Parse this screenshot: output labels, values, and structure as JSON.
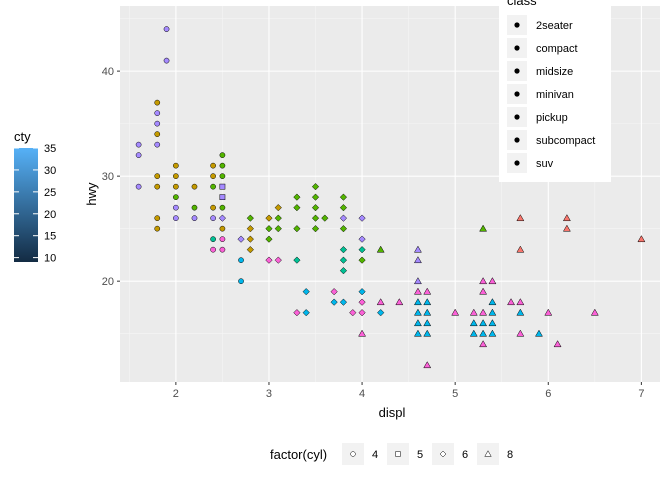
{
  "chart_data": {
    "type": "scatter",
    "xlabel": "displ",
    "ylabel": "hwy",
    "xlim": [
      1.4,
      7.2
    ],
    "ylim": [
      10.4,
      46.2
    ],
    "x_ticks": [
      2,
      3,
      4,
      5,
      6,
      7
    ],
    "y_ticks": [
      20,
      30,
      40
    ],
    "grid": true,
    "color_legend": {
      "title": "cty",
      "variable": "cty",
      "range": [
        9,
        35
      ],
      "breaks": [
        10,
        15,
        20,
        25,
        30,
        35
      ],
      "low_color": "#132B43",
      "high_color": "#56B1F7",
      "placement": "left"
    },
    "shape_legend": {
      "title": "factor(cyl)",
      "placement": "bottom",
      "entries": [
        {
          "label": "4",
          "shape": "circle"
        },
        {
          "label": "5",
          "shape": "square"
        },
        {
          "label": "6",
          "shape": "diamond"
        },
        {
          "label": "8",
          "shape": "triangle"
        }
      ]
    },
    "class_legend": {
      "title": "class",
      "placement": "top-right",
      "entries": [
        "2seater",
        "compact",
        "midsize",
        "minivan",
        "pickup",
        "subcompact",
        "suv"
      ],
      "class_colors": {
        "2seater": "#F8766D",
        "compact": "#C49A00",
        "midsize": "#53B400",
        "minivan": "#00C094",
        "pickup": "#00B6EB",
        "subcompact": "#A58AFF",
        "suv": "#FB61D7"
      }
    },
    "points": [
      {
        "x": 1.6,
        "y": 33,
        "cyl": "4",
        "fill": "#A58AFF",
        "cty": 28
      },
      {
        "x": 1.6,
        "y": 32,
        "cyl": "4",
        "fill": "#A58AFF",
        "cty": 26
      },
      {
        "x": 1.6,
        "y": 29,
        "cyl": "4",
        "fill": "#A58AFF",
        "cty": 24
      },
      {
        "x": 1.8,
        "y": 37,
        "cyl": "4",
        "fill": "#C49A00",
        "cty": 28
      },
      {
        "x": 1.8,
        "y": 36,
        "cyl": "4",
        "fill": "#A58AFF",
        "cty": 28
      },
      {
        "x": 1.8,
        "y": 35,
        "cyl": "4",
        "fill": "#A58AFF",
        "cty": 26
      },
      {
        "x": 1.8,
        "y": 34,
        "cyl": "4",
        "fill": "#C49A00",
        "cty": 25
      },
      {
        "x": 1.8,
        "y": 33,
        "cyl": "4",
        "fill": "#A58AFF",
        "cty": 24
      },
      {
        "x": 1.8,
        "y": 30,
        "cyl": "4",
        "fill": "#C49A00",
        "cty": 22
      },
      {
        "x": 1.8,
        "y": 29,
        "cyl": "4",
        "fill": "#C49A00",
        "cty": 21
      },
      {
        "x": 1.8,
        "y": 26,
        "cyl": "4",
        "fill": "#C49A00",
        "cty": 19
      },
      {
        "x": 1.8,
        "y": 25,
        "cyl": "4",
        "fill": "#C49A00",
        "cty": 18
      },
      {
        "x": 1.9,
        "y": 44,
        "cyl": "4",
        "fill": "#A58AFF",
        "cty": 35
      },
      {
        "x": 1.9,
        "y": 41,
        "cyl": "4",
        "fill": "#A58AFF",
        "cty": 33
      },
      {
        "x": 2.0,
        "y": 31,
        "cyl": "4",
        "fill": "#C49A00",
        "cty": 22
      },
      {
        "x": 2.0,
        "y": 30,
        "cyl": "4",
        "fill": "#C49A00",
        "cty": 21
      },
      {
        "x": 2.0,
        "y": 29,
        "cyl": "4",
        "fill": "#C49A00",
        "cty": 21
      },
      {
        "x": 2.0,
        "y": 28,
        "cyl": "4",
        "fill": "#53B400",
        "cty": 20
      },
      {
        "x": 2.0,
        "y": 27,
        "cyl": "4",
        "fill": "#A58AFF",
        "cty": 21
      },
      {
        "x": 2.0,
        "y": 26,
        "cyl": "4",
        "fill": "#A58AFF",
        "cty": 20
      },
      {
        "x": 2.2,
        "y": 29,
        "cyl": "4",
        "fill": "#C49A00",
        "cty": 21
      },
      {
        "x": 2.2,
        "y": 27,
        "cyl": "4",
        "fill": "#53B400",
        "cty": 21
      },
      {
        "x": 2.2,
        "y": 26,
        "cyl": "4",
        "fill": "#A58AFF",
        "cty": 21
      },
      {
        "x": 2.4,
        "y": 31,
        "cyl": "4",
        "fill": "#C49A00",
        "cty": 22
      },
      {
        "x": 2.4,
        "y": 30,
        "cyl": "4",
        "fill": "#C49A00",
        "cty": 22
      },
      {
        "x": 2.4,
        "y": 29,
        "cyl": "4",
        "fill": "#53B400",
        "cty": 21
      },
      {
        "x": 2.4,
        "y": 27,
        "cyl": "4",
        "fill": "#C49A00",
        "cty": 21
      },
      {
        "x": 2.4,
        "y": 26,
        "cyl": "4",
        "fill": "#A58AFF",
        "cty": 20
      },
      {
        "x": 2.4,
        "y": 24,
        "cyl": "4",
        "fill": "#00C094",
        "cty": 18
      },
      {
        "x": 2.4,
        "y": 23,
        "cyl": "4",
        "fill": "#FB61D7",
        "cty": 18
      },
      {
        "x": 2.5,
        "y": 32,
        "cyl": "4",
        "fill": "#53B400",
        "cty": 23
      },
      {
        "x": 2.5,
        "y": 31,
        "cyl": "4",
        "fill": "#53B400",
        "cty": 22
      },
      {
        "x": 2.5,
        "y": 30,
        "cyl": "4",
        "fill": "#53B400",
        "cty": 22
      },
      {
        "x": 2.5,
        "y": 29,
        "cyl": "5",
        "fill": "#A58AFF",
        "cty": 21
      },
      {
        "x": 2.5,
        "y": 28,
        "cyl": "5",
        "fill": "#A58AFF",
        "cty": 21
      },
      {
        "x": 2.5,
        "y": 27,
        "cyl": "4",
        "fill": "#53B400",
        "cty": 20
      },
      {
        "x": 2.5,
        "y": 26,
        "cyl": "6",
        "fill": "#A58AFF",
        "cty": 19
      },
      {
        "x": 2.5,
        "y": 25,
        "cyl": "4",
        "fill": "#C49A00",
        "cty": 19
      },
      {
        "x": 2.5,
        "y": 24,
        "cyl": "4",
        "fill": "#FB61D7",
        "cty": 19
      },
      {
        "x": 2.5,
        "y": 23,
        "cyl": "4",
        "fill": "#FB61D7",
        "cty": 18
      },
      {
        "x": 2.7,
        "y": 24,
        "cyl": "6",
        "fill": "#A58AFF",
        "cty": 17
      },
      {
        "x": 2.7,
        "y": 22,
        "cyl": "4",
        "fill": "#00B6EB",
        "cty": 16
      },
      {
        "x": 2.7,
        "y": 20,
        "cyl": "4",
        "fill": "#00B6EB",
        "cty": 15
      },
      {
        "x": 2.8,
        "y": 26,
        "cyl": "6",
        "fill": "#53B400",
        "cty": 18
      },
      {
        "x": 2.8,
        "y": 25,
        "cyl": "6",
        "fill": "#C49A00",
        "cty": 17
      },
      {
        "x": 2.8,
        "y": 24,
        "cyl": "6",
        "fill": "#C49A00",
        "cty": 16
      },
      {
        "x": 2.8,
        "y": 23,
        "cyl": "6",
        "fill": "#C49A00",
        "cty": 16
      },
      {
        "x": 3.0,
        "y": 26,
        "cyl": "6",
        "fill": "#C49A00",
        "cty": 18
      },
      {
        "x": 3.0,
        "y": 25,
        "cyl": "6",
        "fill": "#53B400",
        "cty": 18
      },
      {
        "x": 3.0,
        "y": 24,
        "cyl": "6",
        "fill": "#53B400",
        "cty": 17
      },
      {
        "x": 3.0,
        "y": 22,
        "cyl": "6",
        "fill": "#FB61D7",
        "cty": 16
      },
      {
        "x": 3.1,
        "y": 27,
        "cyl": "6",
        "fill": "#C49A00",
        "cty": 18
      },
      {
        "x": 3.1,
        "y": 26,
        "cyl": "6",
        "fill": "#53B400",
        "cty": 18
      },
      {
        "x": 3.1,
        "y": 25,
        "cyl": "6",
        "fill": "#53B400",
        "cty": 18
      },
      {
        "x": 3.1,
        "y": 22,
        "cyl": "6",
        "fill": "#FB61D7",
        "cty": 17
      },
      {
        "x": 3.3,
        "y": 28,
        "cyl": "6",
        "fill": "#53B400",
        "cty": 19
      },
      {
        "x": 3.3,
        "y": 27,
        "cyl": "6",
        "fill": "#53B400",
        "cty": 18
      },
      {
        "x": 3.3,
        "y": 25,
        "cyl": "6",
        "fill": "#53B400",
        "cty": 18
      },
      {
        "x": 3.3,
        "y": 22,
        "cyl": "6",
        "fill": "#00C094",
        "cty": 17
      },
      {
        "x": 3.3,
        "y": 17,
        "cyl": "6",
        "fill": "#FB61D7",
        "cty": 13
      },
      {
        "x": 3.4,
        "y": 19,
        "cyl": "6",
        "fill": "#00B6EB",
        "cty": 15
      },
      {
        "x": 3.4,
        "y": 17,
        "cyl": "6",
        "fill": "#00B6EB",
        "cty": 14
      },
      {
        "x": 3.5,
        "y": 29,
        "cyl": "6",
        "fill": "#53B400",
        "cty": 19
      },
      {
        "x": 3.5,
        "y": 28,
        "cyl": "6",
        "fill": "#53B400",
        "cty": 19
      },
      {
        "x": 3.5,
        "y": 27,
        "cyl": "6",
        "fill": "#53B400",
        "cty": 18
      },
      {
        "x": 3.5,
        "y": 26,
        "cyl": "6",
        "fill": "#53B400",
        "cty": 18
      },
      {
        "x": 3.5,
        "y": 25,
        "cyl": "6",
        "fill": "#53B400",
        "cty": 18
      },
      {
        "x": 3.6,
        "y": 26,
        "cyl": "6",
        "fill": "#53B400",
        "cty": 17
      },
      {
        "x": 3.7,
        "y": 19,
        "cyl": "6",
        "fill": "#FB61D7",
        "cty": 15
      },
      {
        "x": 3.7,
        "y": 18,
        "cyl": "6",
        "fill": "#00B6EB",
        "cty": 15
      },
      {
        "x": 3.8,
        "y": 28,
        "cyl": "6",
        "fill": "#53B400",
        "cty": 18
      },
      {
        "x": 3.8,
        "y": 27,
        "cyl": "6",
        "fill": "#53B400",
        "cty": 18
      },
      {
        "x": 3.8,
        "y": 26,
        "cyl": "6",
        "fill": "#A58AFF",
        "cty": 18
      },
      {
        "x": 3.8,
        "y": 25,
        "cyl": "6",
        "fill": "#53B400",
        "cty": 18
      },
      {
        "x": 3.8,
        "y": 23,
        "cyl": "6",
        "fill": "#00C094",
        "cty": 16
      },
      {
        "x": 3.8,
        "y": 22,
        "cyl": "6",
        "fill": "#00C094",
        "cty": 16
      },
      {
        "x": 3.8,
        "y": 21,
        "cyl": "6",
        "fill": "#00C094",
        "cty": 15
      },
      {
        "x": 3.8,
        "y": 18,
        "cyl": "6",
        "fill": "#00B6EB",
        "cty": 14
      },
      {
        "x": 3.9,
        "y": 17,
        "cyl": "6",
        "fill": "#FB61D7",
        "cty": 14
      },
      {
        "x": 4.0,
        "y": 26,
        "cyl": "6",
        "fill": "#A58AFF",
        "cty": 17
      },
      {
        "x": 4.0,
        "y": 24,
        "cyl": "6",
        "fill": "#A58AFF",
        "cty": 16
      },
      {
        "x": 4.0,
        "y": 23,
        "cyl": "6",
        "fill": "#00C094",
        "cty": 16
      },
      {
        "x": 4.0,
        "y": 22,
        "cyl": "6",
        "fill": "#53B400",
        "cty": 16
      },
      {
        "x": 4.0,
        "y": 19,
        "cyl": "6",
        "fill": "#00B6EB",
        "cty": 15
      },
      {
        "x": 4.0,
        "y": 18,
        "cyl": "6",
        "fill": "#FB61D7",
        "cty": 14
      },
      {
        "x": 4.0,
        "y": 17,
        "cyl": "6",
        "fill": "#FB61D7",
        "cty": 14
      },
      {
        "x": 4.0,
        "y": 15,
        "cyl": "8",
        "fill": "#FB61D7",
        "cty": 13
      },
      {
        "x": 4.2,
        "y": 23,
        "cyl": "8",
        "fill": "#53B400",
        "cty": 16
      },
      {
        "x": 4.2,
        "y": 18,
        "cyl": "8",
        "fill": "#FB61D7",
        "cty": 14
      },
      {
        "x": 4.2,
        "y": 17,
        "cyl": "6",
        "fill": "#00B6EB",
        "cty": 14
      },
      {
        "x": 4.4,
        "y": 18,
        "cyl": "8",
        "fill": "#FB61D7",
        "cty": 13
      },
      {
        "x": 4.6,
        "y": 23,
        "cyl": "8",
        "fill": "#A58AFF",
        "cty": 15
      },
      {
        "x": 4.6,
        "y": 22,
        "cyl": "8",
        "fill": "#A58AFF",
        "cty": 15
      },
      {
        "x": 4.6,
        "y": 20,
        "cyl": "8",
        "fill": "#A58AFF",
        "cty": 14
      },
      {
        "x": 4.6,
        "y": 19,
        "cyl": "8",
        "fill": "#FB61D7",
        "cty": 13
      },
      {
        "x": 4.6,
        "y": 18,
        "cyl": "8",
        "fill": "#00B6EB",
        "cty": 13
      },
      {
        "x": 4.6,
        "y": 17,
        "cyl": "8",
        "fill": "#00B6EB",
        "cty": 12
      },
      {
        "x": 4.6,
        "y": 16,
        "cyl": "8",
        "fill": "#00B6EB",
        "cty": 12
      },
      {
        "x": 4.6,
        "y": 15,
        "cyl": "8",
        "fill": "#00B6EB",
        "cty": 11
      },
      {
        "x": 4.7,
        "y": 19,
        "cyl": "8",
        "fill": "#FB61D7",
        "cty": 13
      },
      {
        "x": 4.7,
        "y": 18,
        "cyl": "8",
        "fill": "#00B6EB",
        "cty": 13
      },
      {
        "x": 4.7,
        "y": 17,
        "cyl": "8",
        "fill": "#00B6EB",
        "cty": 12
      },
      {
        "x": 4.7,
        "y": 16,
        "cyl": "8",
        "fill": "#00B6EB",
        "cty": 11
      },
      {
        "x": 4.7,
        "y": 15,
        "cyl": "8",
        "fill": "#00B6EB",
        "cty": 11
      },
      {
        "x": 4.7,
        "y": 12,
        "cyl": "8",
        "fill": "#FB61D7",
        "cty": 9
      },
      {
        "x": 5.0,
        "y": 17,
        "cyl": "8",
        "fill": "#FB61D7",
        "cty": 13
      },
      {
        "x": 5.2,
        "y": 17,
        "cyl": "8",
        "fill": "#FB61D7",
        "cty": 13
      },
      {
        "x": 5.2,
        "y": 16,
        "cyl": "8",
        "fill": "#00B6EB",
        "cty": 11
      },
      {
        "x": 5.2,
        "y": 15,
        "cyl": "8",
        "fill": "#00B6EB",
        "cty": 11
      },
      {
        "x": 5.3,
        "y": 25,
        "cyl": "8",
        "fill": "#53B400",
        "cty": 16
      },
      {
        "x": 5.3,
        "y": 20,
        "cyl": "8",
        "fill": "#FB61D7",
        "cty": 14
      },
      {
        "x": 5.3,
        "y": 19,
        "cyl": "8",
        "fill": "#FB61D7",
        "cty": 14
      },
      {
        "x": 5.3,
        "y": 17,
        "cyl": "8",
        "fill": "#FB61D7",
        "cty": 12
      },
      {
        "x": 5.3,
        "y": 16,
        "cyl": "8",
        "fill": "#00B6EB",
        "cty": 11
      },
      {
        "x": 5.3,
        "y": 15,
        "cyl": "8",
        "fill": "#00B6EB",
        "cty": 11
      },
      {
        "x": 5.3,
        "y": 14,
        "cyl": "8",
        "fill": "#FB61D7",
        "cty": 10
      },
      {
        "x": 5.4,
        "y": 20,
        "cyl": "8",
        "fill": "#FB61D7",
        "cty": 14
      },
      {
        "x": 5.4,
        "y": 18,
        "cyl": "8",
        "fill": "#00B6EB",
        "cty": 12
      },
      {
        "x": 5.4,
        "y": 17,
        "cyl": "8",
        "fill": "#00B6EB",
        "cty": 12
      },
      {
        "x": 5.4,
        "y": 16,
        "cyl": "8",
        "fill": "#00B6EB",
        "cty": 11
      },
      {
        "x": 5.4,
        "y": 15,
        "cyl": "8",
        "fill": "#00B6EB",
        "cty": 11
      },
      {
        "x": 5.6,
        "y": 18,
        "cyl": "8",
        "fill": "#FB61D7",
        "cty": 12
      },
      {
        "x": 5.7,
        "y": 26,
        "cyl": "8",
        "fill": "#F8766D",
        "cty": 16
      },
      {
        "x": 5.7,
        "y": 23,
        "cyl": "8",
        "fill": "#F8766D",
        "cty": 15
      },
      {
        "x": 5.7,
        "y": 18,
        "cyl": "8",
        "fill": "#FB61D7",
        "cty": 12
      },
      {
        "x": 5.7,
        "y": 17,
        "cyl": "8",
        "fill": "#00B6EB",
        "cty": 11
      },
      {
        "x": 5.7,
        "y": 15,
        "cyl": "8",
        "fill": "#FB61D7",
        "cty": 10
      },
      {
        "x": 5.9,
        "y": 15,
        "cyl": "8",
        "fill": "#00B6EB",
        "cty": 11
      },
      {
        "x": 6.0,
        "y": 17,
        "cyl": "8",
        "fill": "#FB61D7",
        "cty": 12
      },
      {
        "x": 6.1,
        "y": 14,
        "cyl": "8",
        "fill": "#FB61D7",
        "cty": 9
      },
      {
        "x": 6.2,
        "y": 26,
        "cyl": "8",
        "fill": "#F8766D",
        "cty": 16
      },
      {
        "x": 6.2,
        "y": 25,
        "cyl": "8",
        "fill": "#F8766D",
        "cty": 15
      },
      {
        "x": 6.5,
        "y": 17,
        "cyl": "8",
        "fill": "#FB61D7",
        "cty": 11
      },
      {
        "x": 7.0,
        "y": 24,
        "cyl": "8",
        "fill": "#F8766D",
        "cty": 15
      }
    ]
  }
}
